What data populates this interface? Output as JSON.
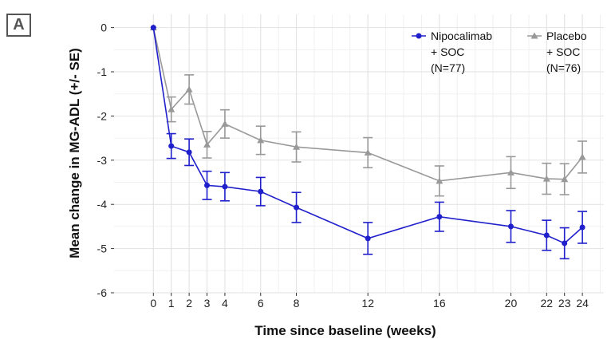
{
  "panel_label": "A",
  "chart_data": {
    "type": "line",
    "xlabel": "Time since baseline (weeks)",
    "ylabel": "Mean change in MG-ADL (+/- SE)",
    "xlim": [
      -2.2,
      25.2
    ],
    "ylim": [
      -6,
      0.3
    ],
    "x_ticks": [
      0,
      1,
      2,
      3,
      4,
      6,
      8,
      12,
      16,
      20,
      22,
      23,
      24
    ],
    "y_ticks": [
      0,
      -1,
      -2,
      -3,
      -4,
      -5,
      -6
    ],
    "grid": true,
    "legend_position": "top-right",
    "series": [
      {
        "name": "Nipocalimab + SOC (N=77)",
        "legend_lines": [
          "Nipocalimab",
          "+ SOC",
          "(N=77)"
        ],
        "color": "#1f1fcc",
        "marker": "circle",
        "x": [
          0,
          1,
          2,
          3,
          4,
          6,
          8,
          12,
          16,
          20,
          22,
          23,
          24
        ],
        "y": [
          0,
          -2.68,
          -2.82,
          -3.57,
          -3.6,
          -3.71,
          -4.07,
          -4.77,
          -4.28,
          -4.5,
          -4.7,
          -4.88,
          -4.52
        ],
        "se": [
          0,
          0.28,
          0.3,
          0.32,
          0.32,
          0.32,
          0.34,
          0.36,
          0.33,
          0.36,
          0.34,
          0.35,
          0.36
        ]
      },
      {
        "name": "Placebo + SOC (N=76)",
        "legend_lines": [
          "Placebo",
          "+ SOC",
          "(N=76)"
        ],
        "color": "#999999",
        "marker": "triangle",
        "x": [
          0,
          1,
          2,
          3,
          4,
          6,
          8,
          12,
          16,
          20,
          22,
          23,
          24
        ],
        "y": [
          0,
          -1.85,
          -1.4,
          -2.65,
          -2.18,
          -2.55,
          -2.7,
          -2.83,
          -3.47,
          -3.28,
          -3.42,
          -3.43,
          -2.93
        ],
        "se": [
          0,
          0.28,
          0.33,
          0.3,
          0.32,
          0.32,
          0.34,
          0.34,
          0.34,
          0.36,
          0.35,
          0.35,
          0.36
        ]
      }
    ]
  }
}
